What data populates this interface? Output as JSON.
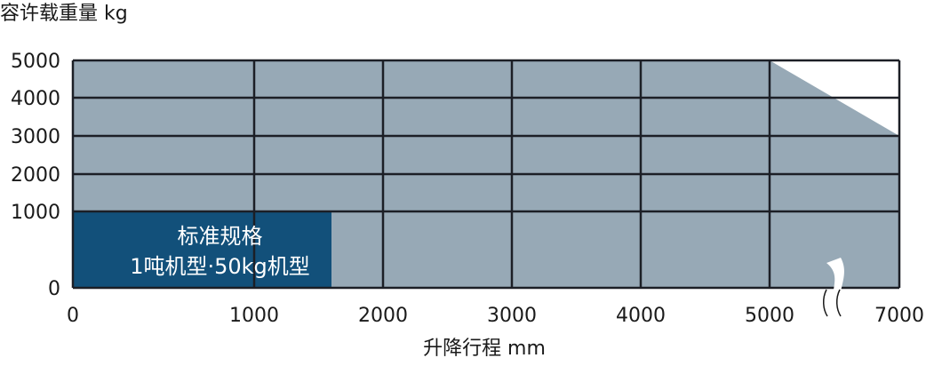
{
  "chart_data": {
    "type": "area",
    "title": "",
    "ylabel": "容许载重量 kg",
    "xlabel": "升降行程 mm",
    "x_ticks": [
      0,
      1000,
      2000,
      3000,
      4000,
      5000,
      7000
    ],
    "y_ticks": [
      0,
      1000,
      2000,
      3000,
      4000,
      5000
    ],
    "x_tick_labels": [
      "0",
      "1000",
      "2000",
      "3000",
      "4000",
      "5000",
      "7000"
    ],
    "y_tick_labels": [
      "0",
      "1000",
      "2000",
      "3000",
      "4000",
      "5000"
    ],
    "xlim": [
      0,
      7000
    ],
    "ylim": [
      0,
      5000
    ],
    "x_axis_break": [
      5000,
      7000
    ],
    "grid": true,
    "series": [
      {
        "name": "",
        "points": [
          [
            0,
            5000
          ],
          [
            5000,
            5000
          ],
          [
            7000,
            3000
          ]
        ],
        "color": "#97a9b6"
      }
    ],
    "region": {
      "x_range": [
        0,
        1600
      ],
      "y_range": [
        0,
        1000
      ],
      "color": "#12507a",
      "label_lines": [
        "标准规格",
        "1吨机型·50kg机型"
      ]
    }
  }
}
